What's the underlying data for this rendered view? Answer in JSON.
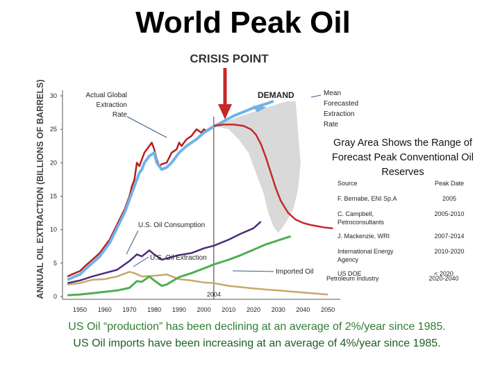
{
  "slide_title": "World Peak Oil",
  "chart_data": {
    "type": "line",
    "title": "CRISIS POINT",
    "ylabel": "ANNUAL OIL EXTRACTION (BILLIONS OF BARRELS)",
    "xlabel": "",
    "xlim": [
      1943,
      2055
    ],
    "ylim": [
      0,
      30
    ],
    "x_ticks": [
      1950,
      1960,
      1970,
      1980,
      1990,
      2000,
      2010,
      2020,
      2030,
      2040,
      2050
    ],
    "y_ticks": [
      0,
      5,
      10,
      15,
      20,
      25,
      30
    ],
    "marker_year": 2004,
    "marker_label": "2004",
    "series": [
      {
        "name": "Actual Global Extraction Rate",
        "color": "#b71c1c",
        "x": [
          1945,
          1948,
          1950,
          1952,
          1955,
          1958,
          1960,
          1962,
          1964,
          1966,
          1968,
          1970,
          1971,
          1972,
          1973,
          1974,
          1975,
          1976,
          1977,
          1978,
          1979,
          1980,
          1981,
          1982,
          1983,
          1985,
          1987,
          1989,
          1990,
          1991,
          1993,
          1995,
          1997,
          1999,
          2000,
          2001,
          2003,
          2004
        ],
        "y": [
          3.0,
          3.5,
          3.8,
          4.5,
          5.5,
          6.5,
          7.5,
          8.5,
          10.0,
          11.5,
          13.0,
          15.0,
          16.5,
          17.5,
          20.0,
          19.5,
          20.5,
          21.5,
          22.0,
          22.5,
          23.0,
          22.0,
          20.5,
          19.5,
          19.8,
          20.0,
          21.5,
          22.0,
          23.0,
          22.5,
          23.5,
          24.0,
          25.0,
          24.5,
          25.0,
          24.8,
          25.3,
          25.5
        ]
      },
      {
        "name": "DEMAND (Mean Forecasted Extraction Rate)",
        "color": "#6fb3e8",
        "x": [
          1945,
          1948,
          1950,
          1952,
          1955,
          1958,
          1960,
          1962,
          1964,
          1966,
          1968,
          1970,
          1972,
          1974,
          1975,
          1976,
          1978,
          1980,
          1981,
          1982,
          1983,
          1985,
          1987,
          1990,
          1993,
          1995,
          1997,
          2000,
          2004,
          2008,
          2012,
          2016,
          2020,
          2025,
          2028
        ],
        "y": [
          2.5,
          3.0,
          3.3,
          4.0,
          5.0,
          6.0,
          7.0,
          8.0,
          9.5,
          11.0,
          12.5,
          14.5,
          16.5,
          18.5,
          19.0,
          20.0,
          21.0,
          21.5,
          20.0,
          19.5,
          19.0,
          19.3,
          20.0,
          21.5,
          22.5,
          23.0,
          23.5,
          24.5,
          25.4,
          26.2,
          27.0,
          27.6,
          28.2,
          28.8,
          29.2
        ]
      },
      {
        "name": "Forecast decline",
        "color": "#c62828",
        "x": [
          2004,
          2008,
          2012,
          2016,
          2019,
          2021,
          2023,
          2025,
          2027,
          2029,
          2031,
          2034,
          2037,
          2040,
          2043,
          2046,
          2049,
          2052
        ],
        "y": [
          25.5,
          25.7,
          25.7,
          25.5,
          25.0,
          24.2,
          22.8,
          20.8,
          18.5,
          16.2,
          14.3,
          12.5,
          11.5,
          11.0,
          10.7,
          10.5,
          10.3,
          10.2
        ]
      },
      {
        "name": "U.S. Oil Consumption",
        "color": "#4a2c7a",
        "x": [
          1945,
          1950,
          1955,
          1960,
          1965,
          1970,
          1973,
          1975,
          1978,
          1980,
          1983,
          1985,
          1990,
          1995,
          2000,
          2004,
          2010,
          2015,
          2020,
          2023
        ],
        "y": [
          2.0,
          2.4,
          3.0,
          3.5,
          4.0,
          5.3,
          6.3,
          6.0,
          6.9,
          6.3,
          5.5,
          5.7,
          6.2,
          6.5,
          7.2,
          7.6,
          8.5,
          9.4,
          10.2,
          11.2
        ]
      },
      {
        "name": "U.S. Oil Extraction",
        "color": "#c8a86a",
        "x": [
          1945,
          1950,
          1955,
          1960,
          1965,
          1970,
          1972,
          1975,
          1980,
          1985,
          1990,
          1995,
          2000,
          2004,
          2010,
          2020,
          2030,
          2040,
          2050
        ],
        "y": [
          1.8,
          2.0,
          2.5,
          2.6,
          3.0,
          3.7,
          3.5,
          3.0,
          3.1,
          3.3,
          2.6,
          2.4,
          2.1,
          2.0,
          1.6,
          1.2,
          0.9,
          0.6,
          0.3
        ]
      },
      {
        "name": "Imported Oil",
        "color": "#4caf50",
        "x": [
          1945,
          1950,
          1955,
          1960,
          1965,
          1970,
          1973,
          1975,
          1978,
          1980,
          1983,
          1985,
          1990,
          1995,
          2000,
          2004,
          2010,
          2015,
          2020,
          2025,
          2030,
          2035
        ],
        "y": [
          0.2,
          0.3,
          0.5,
          0.7,
          0.9,
          1.3,
          2.3,
          2.2,
          3.0,
          2.4,
          1.6,
          1.8,
          2.9,
          3.5,
          4.2,
          4.8,
          5.5,
          6.2,
          7.0,
          7.8,
          8.4,
          9.0
        ]
      }
    ],
    "forecast_range": {
      "name": "Gray Area: Range of Forecast Peak Conventional Oil Reserves",
      "x_upper": [
        2004,
        2015,
        2025,
        2030,
        2034,
        2037
      ],
      "y_upper": [
        25.5,
        27.0,
        28.2,
        28.8,
        29.2,
        29.2
      ],
      "x_lower": [
        2039,
        2038,
        2036,
        2033,
        2030,
        2028,
        2026,
        2024,
        2021,
        2018,
        2014,
        2010,
        2004
      ],
      "y_lower": [
        20.0,
        16.0,
        13.0,
        11.0,
        9.5,
        10.5,
        12.5,
        15.5,
        18.5,
        21.5,
        23.5,
        25.0,
        25.5
      ]
    },
    "annotations": {
      "actual_global": [
        "Actual Global",
        "Extraction",
        "Rate"
      ],
      "demand": "DEMAND",
      "mean_forecast": [
        "Mean",
        "Forecasted",
        "Extraction",
        "Rate"
      ],
      "us_consumption": "U.S. Oil Consumption",
      "us_extraction": "U.S. Oil Extraction",
      "imported": "Imported Oil"
    }
  },
  "gray_area_note": "Gray Area Shows the Range of Forecast Peak Conventional Oil Reserves",
  "peak_table": {
    "headers": {
      "source": "Source",
      "peak": "Peak Date"
    },
    "rows": [
      {
        "source": "F. Bernabe, ENI Sp.A",
        "peak": "2005"
      },
      {
        "source": "C. Campbell, Petroconsultants",
        "peak": "2005-2010"
      },
      {
        "source": "J. Mackenzie, WRI",
        "peak": "2007-2014"
      },
      {
        "source": "International Energy Agency",
        "peak": "2010-2020"
      },
      {
        "source": "US DOE",
        "peak": "< 2020"
      },
      {
        "source": "Petroleum Industry",
        "peak": "2020-2040"
      }
    ]
  },
  "footer": {
    "line1": "US Oil “production” has been declining at an average of 2%/year since 1985.",
    "line2": "US Oil imports have been increasing at an average of 4%/year since 1985."
  }
}
